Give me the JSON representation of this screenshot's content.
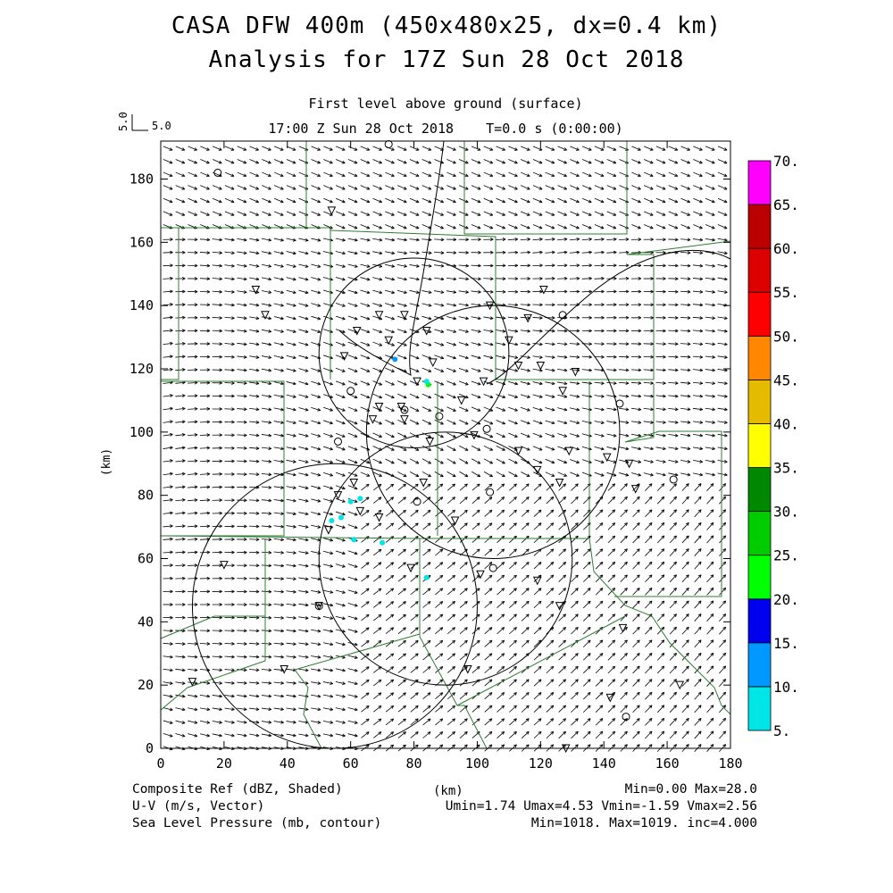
{
  "title": {
    "line1": "CASA DFW 400m (450x480x25, dx=0.4 km)",
    "line2": "Analysis for 17Z Sun 28 Oct 2018"
  },
  "subtitle": {
    "level": "First level above ground (surface)",
    "time": "17:00 Z Sun 28 Oct 2018    T=0.0 s (0:00:00)"
  },
  "vector_reference": {
    "u": "5.0",
    "v": "5.0"
  },
  "chart_data": {
    "type": "map",
    "xlabel": "(km)",
    "ylabel": "(km)",
    "xlim": [
      0,
      180
    ],
    "ylim": [
      0,
      192
    ],
    "xticks": [
      0,
      20,
      40,
      60,
      80,
      100,
      120,
      140,
      160,
      180
    ],
    "yticks": [
      0,
      20,
      40,
      60,
      80,
      100,
      120,
      140,
      160,
      180
    ],
    "colorbar": {
      "values": [
        5,
        10,
        15,
        20,
        25,
        30,
        35,
        40,
        45,
        50,
        55,
        60,
        65,
        70
      ],
      "labels": [
        "5.",
        "10.",
        "15.",
        "20.",
        "25.",
        "30.",
        "35.",
        "40.",
        "45.",
        "50.",
        "55.",
        "60.",
        "65.",
        "70."
      ],
      "colors": [
        "#00e5e5",
        "#0099ff",
        "#0000ee",
        "#00ff00",
        "#00cc00",
        "#008800",
        "#ffff00",
        "#e5bb00",
        "#ff8800",
        "#ff0000",
        "#dd0000",
        "#bb0000",
        "#ff00ff"
      ]
    },
    "radar_rings": [
      {
        "center": [
          105,
          100
        ],
        "radius_km": 40
      },
      {
        "center": [
          90,
          60
        ],
        "radius_km": 40
      },
      {
        "center": [
          55,
          45
        ],
        "radius_km": 45
      },
      {
        "center": [
          80,
          125
        ],
        "radius_km": 30
      }
    ],
    "reflectivity_echoes": [
      {
        "x": 74,
        "y": 123,
        "dbz": 12
      },
      {
        "x": 84.5,
        "y": 115,
        "dbz": 20
      },
      {
        "x": 84,
        "y": 116,
        "dbz": 9
      },
      {
        "x": 63,
        "y": 79,
        "dbz": 7
      },
      {
        "x": 60,
        "y": 78,
        "dbz": 9
      },
      {
        "x": 57,
        "y": 73,
        "dbz": 8
      },
      {
        "x": 54,
        "y": 72,
        "dbz": 7
      },
      {
        "x": 61,
        "y": 66,
        "dbz": 9
      },
      {
        "x": 70,
        "y": 65,
        "dbz": 9
      },
      {
        "x": 84,
        "y": 54,
        "dbz": 9
      }
    ]
  },
  "footer": {
    "left": [
      "Composite Ref (dBZ, Shaded)",
      "U-V (m/s, Vector)",
      "Sea Level Pressure (mb, contour)"
    ],
    "right": [
      "Min=0.00 Max=28.0",
      "Umin=1.74 Umax=4.53 Vmin=-1.59 Vmax=2.56",
      "Min=1018. Max=1019. inc=4.000"
    ]
  }
}
